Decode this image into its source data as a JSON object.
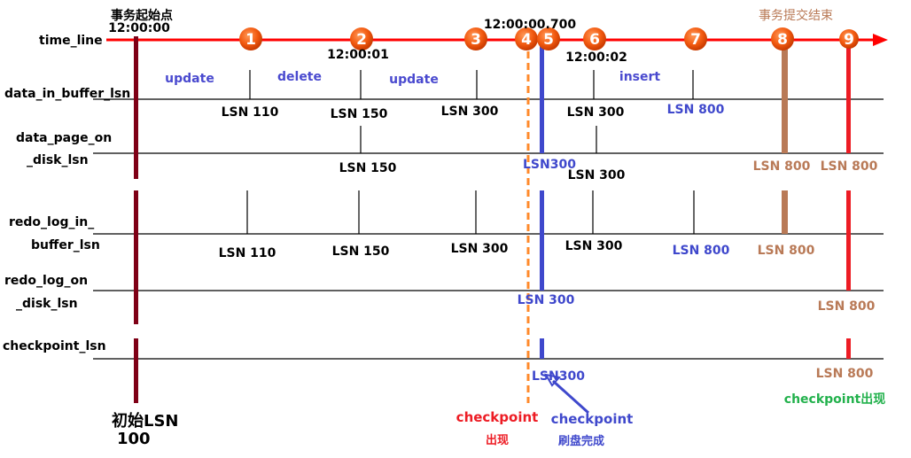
{
  "rows": {
    "time_line": "time_line",
    "data_in_buffer_lsn": "data_in_buffer_lsn",
    "data_page_on_1": "data_page_on",
    "data_page_on_2": "_disk_lsn",
    "redo_log_in_1": "redo_log_in_",
    "redo_log_in_2": "buffer_lsn",
    "redo_log_on_1": "redo_log_on",
    "redo_log_on_2": "_disk_lsn",
    "checkpoint_lsn": "checkpoint_lsn"
  },
  "timeline": {
    "start_label": "事务起始点",
    "start_time": "12:00:00",
    "time_2": "12:00:01",
    "time_4": "12:00:00.700",
    "time_6": "12:00:02",
    "end_label": "事务提交结束",
    "steps": [
      "1",
      "2",
      "3",
      "4",
      "5",
      "6",
      "7",
      "8",
      "9"
    ]
  },
  "operations": [
    "update",
    "delete",
    "update",
    "insert"
  ],
  "data_in_buffer": [
    "LSN 110",
    "LSN 150",
    "LSN 300",
    "LSN 300",
    "LSN 800"
  ],
  "data_page_on_disk": [
    "LSN 150",
    "LSN300",
    "LSN 300",
    "LSN 800",
    "LSN 800"
  ],
  "redo_log_in_buffer": [
    "LSN 110",
    "LSN 150",
    "LSN 300",
    "LSN 300",
    "LSN 800",
    "LSN 800"
  ],
  "redo_log_on_disk": [
    "LSN 300",
    "LSN 800"
  ],
  "checkpoint": [
    "LSN300",
    "LSN 800"
  ],
  "annotations": {
    "initial_lsn_1": "初始LSN",
    "initial_lsn_2": "100",
    "cp_appear_1": "checkpoint",
    "cp_appear_2": "出现",
    "cp_flush_1": "checkpoint",
    "cp_flush_2": "刷盘完成",
    "cp_appear_green": "checkpoint出现"
  },
  "colors": {
    "timeline": "#ff0000",
    "start_bar": "#7f0016",
    "orange": "#ff8a2b",
    "blue": "#3f48cc",
    "brown": "#b97a57",
    "red": "#ed1c24",
    "green": "#22b14c",
    "op": "#4a4acf"
  }
}
